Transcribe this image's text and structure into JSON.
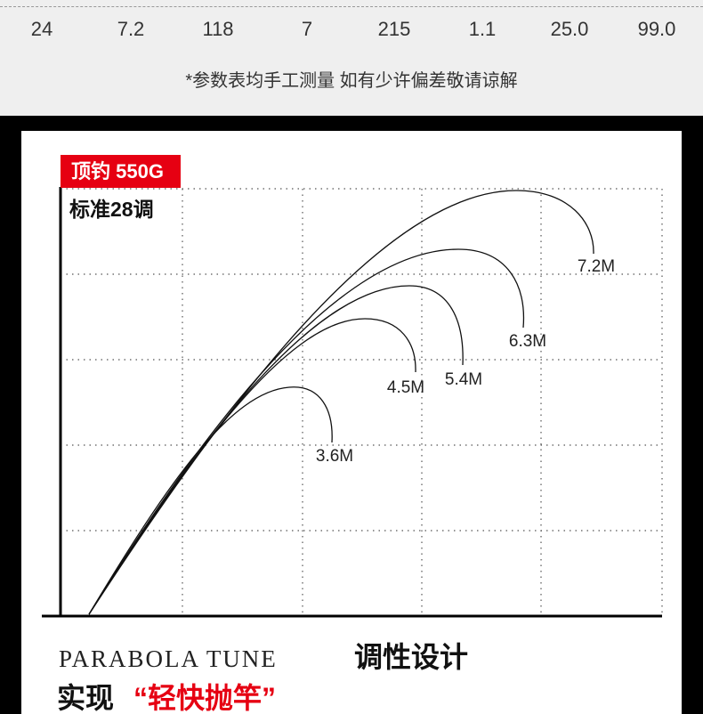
{
  "spec_row": [
    "24",
    "7.2",
    "118",
    "7",
    "215",
    "1.1",
    "25.0",
    "99.0"
  ],
  "note": "*参数表均手工测量 如有少许偏差敬请谅解",
  "badge": "顶钓 550G",
  "subtitle": "标准28调",
  "curve_labels": [
    "3.6M",
    "4.5M",
    "5.4M",
    "6.3M",
    "7.2M"
  ],
  "footer": {
    "english": "PARABOLA TUNE",
    "heading": "调性设计",
    "prefix": "实现",
    "highlight": "“轻快抛竿”"
  }
}
